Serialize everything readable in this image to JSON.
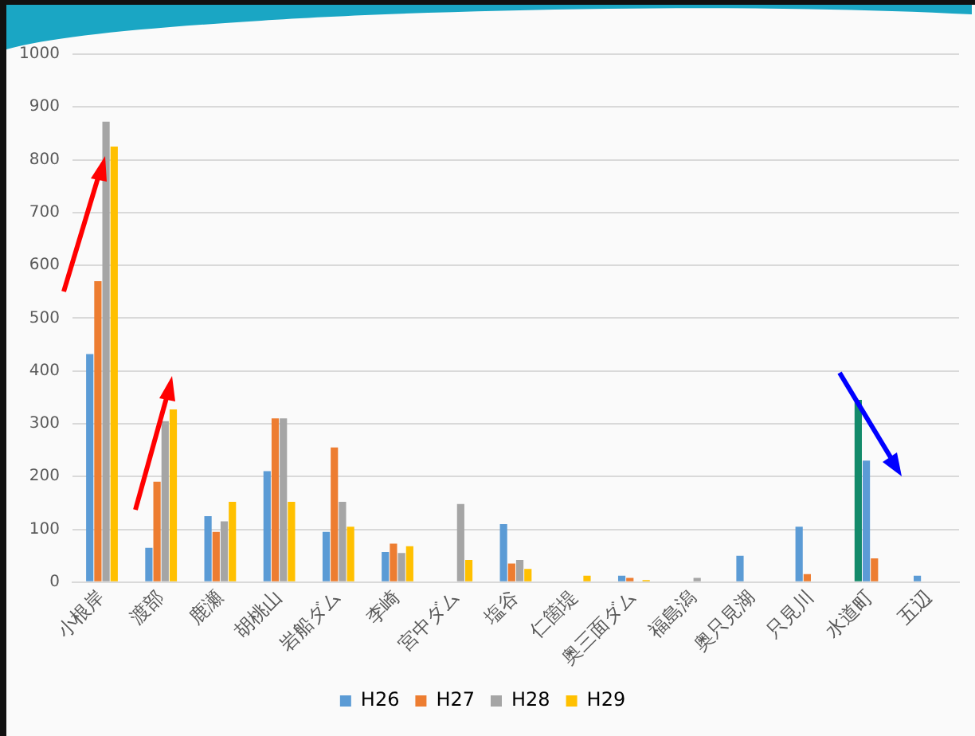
{
  "chart_data": {
    "type": "bar",
    "categories": [
      "小根岸",
      "渡部",
      "鹿瀬",
      "胡桃山",
      "岩船ダム",
      "李崎",
      "宮中ダム",
      "塩谷",
      "仁箇堤",
      "奥三面ダム",
      "福島潟",
      "奥只見湖",
      "只見川",
      "水道町",
      "五辺"
    ],
    "series": [
      {
        "name": "H26",
        "color": "#5b9bd5",
        "colors": [
          "#5b9bd5",
          "#5b9bd5",
          "#5b9bd5",
          "#5b9bd5",
          "#5b9bd5",
          "#5b9bd5",
          "#5b9bd5",
          "#5b9bd5",
          "#5b9bd5",
          "#5b9bd5",
          "#5b9bd5",
          "#5b9bd5",
          "#5b9bd5",
          "#138a6a",
          "#5b9bd5"
        ],
        "values": [
          432,
          65,
          125,
          210,
          95,
          57,
          0,
          110,
          0,
          12,
          0,
          50,
          105,
          345,
          12
        ]
      },
      {
        "name": "H27",
        "color": "#ed7d31",
        "colors": [
          "#ed7d31",
          "#ed7d31",
          "#ed7d31",
          "#ed7d31",
          "#ed7d31",
          "#ed7d31",
          "#ed7d31",
          "#ed7d31",
          "#ed7d31",
          "#ed7d31",
          "#ed7d31",
          "#ed7d31",
          "#ed7d31",
          "#5b9bd5",
          "#ed7d31"
        ],
        "values": [
          570,
          190,
          95,
          310,
          255,
          73,
          0,
          35,
          0,
          8,
          0,
          0,
          15,
          230,
          0
        ]
      },
      {
        "name": "H28",
        "color": "#a5a5a5",
        "colors": [
          "#a5a5a5",
          "#a5a5a5",
          "#a5a5a5",
          "#a5a5a5",
          "#a5a5a5",
          "#a5a5a5",
          "#a5a5a5",
          "#a5a5a5",
          "#a5a5a5",
          "#a5a5a5",
          "#a5a5a5",
          "#a5a5a5",
          "#a5a5a5",
          "#ed7d31",
          "#a5a5a5"
        ],
        "values": [
          872,
          305,
          115,
          310,
          152,
          55,
          148,
          42,
          0,
          0,
          8,
          null,
          null,
          45,
          0
        ]
      },
      {
        "name": "H29",
        "color": "#ffc000",
        "values": [
          825,
          327,
          152,
          152,
          105,
          68,
          42,
          25,
          12,
          4,
          null,
          0,
          0,
          0,
          0
        ]
      }
    ],
    "ylim": [
      0,
      1000
    ],
    "yticks": [
      0,
      100,
      200,
      300,
      400,
      500,
      600,
      700,
      800,
      900,
      1000
    ],
    "grid": "y",
    "legend": "bottom"
  }
}
